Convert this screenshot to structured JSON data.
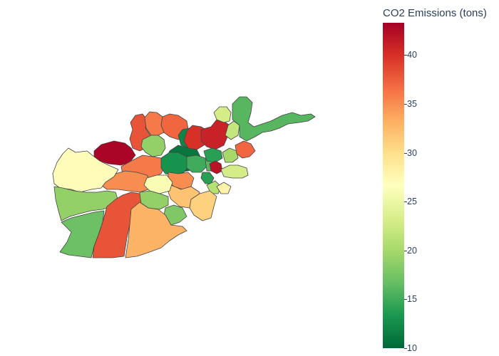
{
  "colorbar": {
    "title": "CO2 Emissions (tons)",
    "min": 10,
    "max": 43.3,
    "ticks": [
      "10",
      "15",
      "20",
      "25",
      "30",
      "35",
      "40"
    ],
    "colorscale": "RdYlGn reversed",
    "stops": [
      "#006837",
      "#1a9850",
      "#66bd63",
      "#a6d96a",
      "#d9ef8b",
      "#ffffbf",
      "#fee08b",
      "#fdae61",
      "#f46d43",
      "#d73027",
      "#a50026"
    ]
  },
  "map": {
    "country": "Afghanistan",
    "values": [
      43,
      38,
      36,
      37,
      19,
      36,
      35,
      27,
      19,
      17,
      12,
      11,
      40,
      41,
      23,
      22,
      16,
      13,
      15,
      16,
      14,
      42,
      20,
      37,
      35,
      23,
      14,
      32,
      21,
      28,
      26,
      19,
      31,
      18,
      38,
      33
    ]
  }
}
